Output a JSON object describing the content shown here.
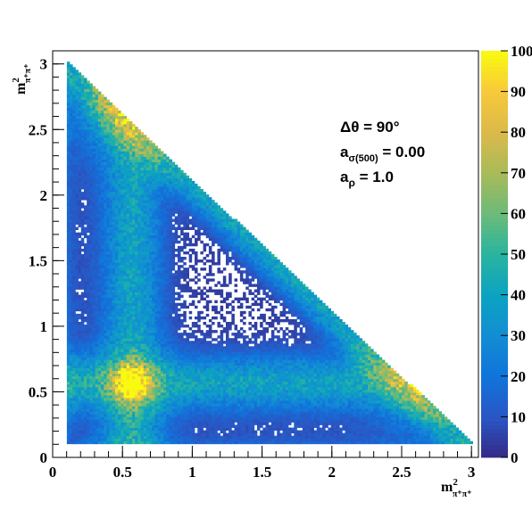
{
  "chart_data": {
    "type": "heatmap",
    "title": "",
    "xlabel": {
      "base": "m",
      "sup": "2",
      "sub": "π⁺π⁺"
    },
    "ylabel": {
      "base": "m",
      "sup": "2",
      "sub": "π⁺π⁺"
    },
    "xlim": [
      0,
      3.05
    ],
    "ylim": [
      0,
      3.1
    ],
    "x_ticks": [
      "0",
      "0.5",
      "1",
      "1.5",
      "2",
      "2.5",
      "3"
    ],
    "y_ticks": [
      "0",
      "0.5",
      "1",
      "1.5",
      "2",
      "2.5",
      "3"
    ],
    "colorbar": {
      "range": [
        0,
        100
      ],
      "ticks": [
        "0",
        "10",
        "20",
        "30",
        "40",
        "50",
        "60",
        "70",
        "80",
        "90",
        "100"
      ]
    },
    "annotations": [
      {
        "text": "Δθ = 90°"
      },
      {
        "base": "a",
        "sub": "σ(500)",
        "rest": " = 0.00"
      },
      {
        "base": "a",
        "sub": "ρ",
        "rest": " = 1.0"
      }
    ],
    "features": [
      {
        "name": "phase-space boundary",
        "corners": [
          [
            0.1,
            0.1
          ],
          [
            0.3,
            2.98
          ],
          [
            2.98,
            0.3
          ]
        ]
      },
      {
        "name": "peak",
        "x": 0.57,
        "y": 0.57,
        "value": 85
      },
      {
        "name": "band",
        "along": "x",
        "value_mean": 0.57
      },
      {
        "name": "band",
        "along": "y",
        "value_mean": 0.57
      },
      {
        "name": "diagonal band",
        "sum": 3.1
      }
    ],
    "grid": false,
    "colormap": "parula"
  }
}
